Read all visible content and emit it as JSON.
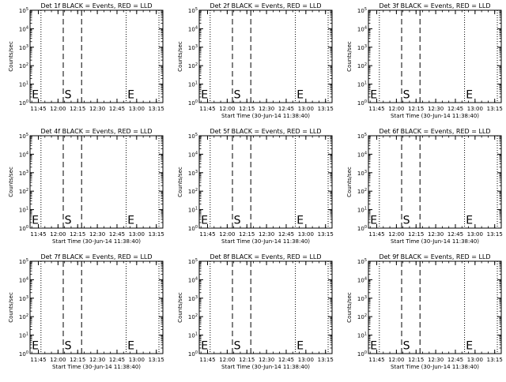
{
  "figure": {
    "ylabel": "Counts/sec",
    "xlabel": "Start Time (30-Jun-14 11:38:40)",
    "xticks": [
      "11:45",
      "12:00",
      "12:15",
      "12:30",
      "12:45",
      "13:00",
      "13:15"
    ],
    "yticks": [
      "10^0",
      "10^1",
      "10^2",
      "10^3",
      "10^4",
      "10^5"
    ],
    "colors": {
      "axis": "#000000",
      "background": "#ffffff"
    }
  },
  "chart_data": [
    {
      "type": "line",
      "title": "Det 1f BLACK = Events, RED = LLD",
      "xlabel": "",
      "ylabel": "Counts/sec",
      "y_scale": "log",
      "ylim": [
        1,
        100000
      ],
      "x_range": [
        "11:38:40",
        "13:20"
      ],
      "dotted_lines": [
        "11:47",
        "12:52",
        "13:17"
      ],
      "dashed_lines": [
        "12:04",
        "12:18"
      ],
      "markers": [
        {
          "text": "E",
          "x": "11:40"
        },
        {
          "text": "S",
          "x": "12:05"
        },
        {
          "text": "E",
          "x": "12:53"
        }
      ],
      "series": []
    },
    {
      "type": "line",
      "title": "Det 2f BLACK = Events, RED = LLD",
      "xlabel": "Start Time (30-Jun-14 11:38:40)",
      "ylabel": "Counts/sec",
      "y_scale": "log",
      "ylim": [
        1,
        100000
      ],
      "x_range": [
        "11:38:40",
        "13:20"
      ],
      "dotted_lines": [
        "11:47",
        "12:52",
        "13:17"
      ],
      "dashed_lines": [
        "12:04",
        "12:18"
      ],
      "markers": [
        {
          "text": "E",
          "x": "11:40"
        },
        {
          "text": "S",
          "x": "12:05"
        },
        {
          "text": "E",
          "x": "12:53"
        }
      ],
      "series": []
    },
    {
      "type": "line",
      "title": "Det 3f BLACK = Events, RED = LLD",
      "xlabel": "Start Time (30-Jun-14 11:38:40)",
      "ylabel": "Counts/sec",
      "y_scale": "log",
      "ylim": [
        1,
        100000
      ],
      "x_range": [
        "11:38:40",
        "13:20"
      ],
      "dotted_lines": [
        "11:47",
        "12:52",
        "13:17"
      ],
      "dashed_lines": [
        "12:04",
        "12:18"
      ],
      "markers": [
        {
          "text": "E",
          "x": "11:40"
        },
        {
          "text": "S",
          "x": "12:05"
        },
        {
          "text": "E",
          "x": "12:53"
        }
      ],
      "series": []
    },
    {
      "type": "line",
      "title": "Det 4f BLACK = Events, RED = LLD",
      "xlabel": "Start Time (30-Jun-14 11:38:40)",
      "ylabel": "Counts/sec",
      "y_scale": "log",
      "ylim": [
        1,
        100000
      ],
      "x_range": [
        "11:38:40",
        "13:20"
      ],
      "dotted_lines": [
        "11:47",
        "12:52",
        "13:17"
      ],
      "dashed_lines": [
        "12:04",
        "12:18"
      ],
      "markers": [
        {
          "text": "E",
          "x": "11:40"
        },
        {
          "text": "S",
          "x": "12:05"
        },
        {
          "text": "E",
          "x": "12:53"
        }
      ],
      "series": []
    },
    {
      "type": "line",
      "title": "Det 5f BLACK = Events, RED = LLD",
      "xlabel": "Start Time (30-Jun-14 11:38:40)",
      "ylabel": "Counts/sec",
      "y_scale": "log",
      "ylim": [
        1,
        100000
      ],
      "x_range": [
        "11:38:40",
        "13:20"
      ],
      "dotted_lines": [
        "11:47",
        "12:52",
        "13:17"
      ],
      "dashed_lines": [
        "12:04",
        "12:18"
      ],
      "markers": [
        {
          "text": "E",
          "x": "11:40"
        },
        {
          "text": "S",
          "x": "12:05"
        },
        {
          "text": "E",
          "x": "12:53"
        }
      ],
      "series": []
    },
    {
      "type": "line",
      "title": "Det 6f BLACK = Events, RED = LLD",
      "xlabel": "Start Time (30-Jun-14 11:38:40)",
      "ylabel": "Counts/sec",
      "y_scale": "log",
      "ylim": [
        1,
        100000
      ],
      "x_range": [
        "11:38:40",
        "13:20"
      ],
      "dotted_lines": [
        "11:47",
        "12:52",
        "13:17"
      ],
      "dashed_lines": [
        "12:04",
        "12:18"
      ],
      "markers": [
        {
          "text": "E",
          "x": "11:40"
        },
        {
          "text": "S",
          "x": "12:05"
        },
        {
          "text": "E",
          "x": "12:53"
        }
      ],
      "series": []
    },
    {
      "type": "line",
      "title": "Det 7f BLACK = Events, RED = LLD",
      "xlabel": "Start Time (30-Jun-14 11:38:40)",
      "ylabel": "Counts/sec",
      "y_scale": "log",
      "ylim": [
        1,
        100000
      ],
      "x_range": [
        "11:38:40",
        "13:20"
      ],
      "dotted_lines": [
        "11:47",
        "12:52",
        "13:17"
      ],
      "dashed_lines": [
        "12:04",
        "12:18"
      ],
      "markers": [
        {
          "text": "E",
          "x": "11:40"
        },
        {
          "text": "S",
          "x": "12:05"
        },
        {
          "text": "E",
          "x": "12:53"
        }
      ],
      "series": []
    },
    {
      "type": "line",
      "title": "Det 8f BLACK = Events, RED = LLD",
      "xlabel": "Start Time (30-Jun-14 11:38:40)",
      "ylabel": "Counts/sec",
      "y_scale": "log",
      "ylim": [
        1,
        100000
      ],
      "x_range": [
        "11:38:40",
        "13:20"
      ],
      "dotted_lines": [
        "11:47",
        "12:52",
        "13:17"
      ],
      "dashed_lines": [
        "12:04",
        "12:18"
      ],
      "markers": [
        {
          "text": "E",
          "x": "11:40"
        },
        {
          "text": "S",
          "x": "12:05"
        },
        {
          "text": "E",
          "x": "12:53"
        }
      ],
      "series": []
    },
    {
      "type": "line",
      "title": "Det 9f BLACK = Events, RED = LLD",
      "xlabel": "Start Time (30-Jun-14 11:38:40)",
      "ylabel": "Counts/sec",
      "y_scale": "log",
      "ylim": [
        1,
        100000
      ],
      "x_range": [
        "11:38:40",
        "13:20"
      ],
      "dotted_lines": [
        "11:47",
        "12:52",
        "13:17"
      ],
      "dashed_lines": [
        "12:04",
        "12:18"
      ],
      "markers": [
        {
          "text": "E",
          "x": "11:40"
        },
        {
          "text": "S",
          "x": "12:05"
        },
        {
          "text": "E",
          "x": "12:53"
        }
      ],
      "series": []
    }
  ]
}
